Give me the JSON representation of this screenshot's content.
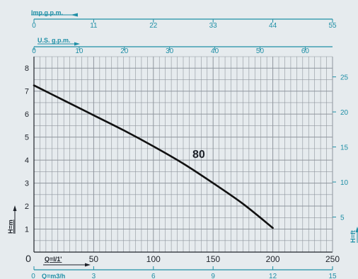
{
  "colors": {
    "background": "#e6ebee",
    "grid": "#8f969d",
    "axis": "#1e2229",
    "accent": "#1f8fa6",
    "curve": "#111111"
  },
  "chart_data": {
    "type": "line",
    "title": "",
    "curve_label": "80",
    "x_axis": {
      "label": "Q=l/1'",
      "range": [
        0,
        250
      ],
      "ticks": [
        "0",
        "50",
        "100",
        "150",
        "200",
        "250"
      ]
    },
    "y_axis": {
      "label": "H=m",
      "range": [
        0,
        8.5
      ],
      "ticks": [
        "1",
        "2",
        "3",
        "4",
        "5",
        "6",
        "7",
        "8"
      ]
    },
    "y2_axis": {
      "label": "H=ft",
      "ticks": [
        "5",
        "10",
        "15",
        "20",
        "25"
      ]
    },
    "x2_axis": {
      "label": "Q=m3/h",
      "ticks": [
        "0",
        "3",
        "6",
        "9",
        "12",
        "15"
      ]
    },
    "top_axis_us": {
      "label": "U.S. g.p.m.",
      "ticks": [
        "0",
        "10",
        "20",
        "30",
        "40",
        "50",
        "60"
      ]
    },
    "top_axis_imp": {
      "label": "Imp.g.p.m.",
      "ticks": [
        "0",
        "11",
        "22",
        "33",
        "44",
        "55"
      ]
    },
    "series": [
      {
        "x": [
          0,
          25,
          50,
          75,
          100,
          125,
          150,
          175,
          200
        ],
        "y": [
          7.25,
          6.6,
          5.95,
          5.3,
          4.6,
          3.85,
          3.0,
          2.1,
          1.05
        ]
      }
    ]
  }
}
